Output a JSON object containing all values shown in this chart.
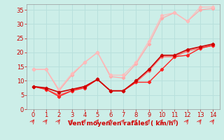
{
  "title": "",
  "xlabel": "Vent moyen/en rafales ( km/h )",
  "bg_color": "#cceee8",
  "grid_color": "#b8e0dc",
  "x": [
    0,
    1,
    2,
    3,
    4,
    5,
    6,
    7,
    8,
    9,
    10,
    11,
    12,
    13,
    14
  ],
  "line1": {
    "y": [
      14,
      14,
      6.5,
      12,
      16.5,
      20,
      11.5,
      11,
      16,
      23,
      32,
      34,
      31,
      35,
      35.5
    ],
    "color": "#ffaaaa",
    "marker": "D",
    "markersize": 2.2,
    "linewidth": 0.9
  },
  "line2": {
    "y": [
      14,
      14,
      7,
      12.5,
      16.5,
      20,
      12,
      12,
      16.5,
      24,
      33,
      34,
      31,
      36,
      36
    ],
    "color": "#ffbbbb",
    "marker": "D",
    "markersize": 2.2,
    "linewidth": 0.9
  },
  "line3": {
    "y": [
      8,
      7,
      5,
      6.5,
      8,
      10.5,
      6.5,
      6.5,
      9.5,
      13.5,
      18.5,
      18.5,
      20.5,
      21.5,
      22.5
    ],
    "color": "#ff6666",
    "marker": "D",
    "markersize": 2.2,
    "linewidth": 1.0
  },
  "line4": {
    "y": [
      8,
      7,
      4.5,
      6.5,
      7.5,
      10.5,
      6.5,
      6.5,
      9.5,
      9.5,
      14,
      18.5,
      19,
      21.5,
      22.5
    ],
    "color": "#ff2222",
    "marker": "D",
    "markersize": 2.2,
    "linewidth": 1.0
  },
  "line5": {
    "y": [
      8,
      7.5,
      6,
      7,
      8,
      10.5,
      6.5,
      6.5,
      10,
      14,
      19,
      19,
      21,
      22,
      23
    ],
    "color": "#cc0000",
    "marker": "D",
    "markersize": 2.2,
    "linewidth": 1.2
  },
  "ylim": [
    0,
    37
  ],
  "yticks": [
    0,
    5,
    10,
    15,
    20,
    25,
    30,
    35
  ],
  "xlim": [
    -0.5,
    14.5
  ],
  "xticks": [
    0,
    1,
    2,
    3,
    4,
    5,
    6,
    7,
    8,
    9,
    10,
    11,
    12,
    13,
    14
  ],
  "tick_color": "#cc0000",
  "label_color": "#cc0000",
  "xlabel_fontsize": 6.5,
  "tick_fontsize": 6.0
}
